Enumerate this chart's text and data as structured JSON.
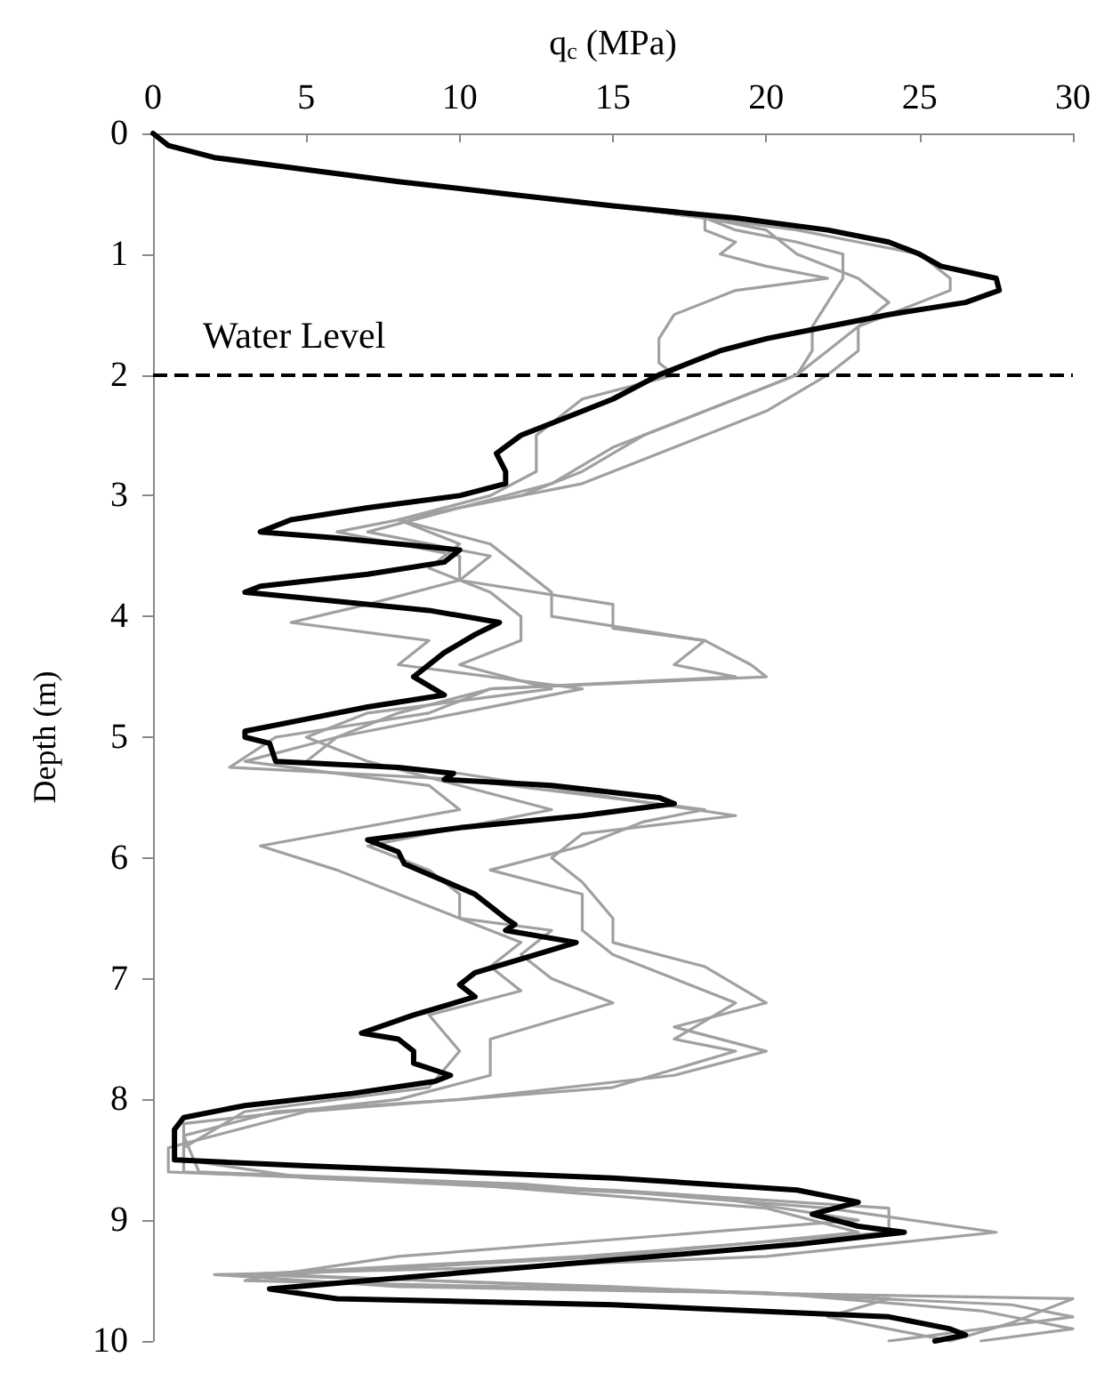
{
  "chart_data": {
    "type": "line",
    "xlabel": "q$_{c}$ (MPa)",
    "ylabel": "Depth (m)",
    "xlim": [
      0,
      30
    ],
    "xticks": [
      0,
      5,
      10,
      15,
      20,
      25,
      30
    ],
    "ylim": [
      10,
      0
    ],
    "yticks": [
      0,
      1,
      2,
      3,
      4,
      5,
      6,
      7,
      8,
      9,
      10
    ],
    "grid": false,
    "marker": "none",
    "line_style": "solid",
    "ref_lines": [
      {
        "axis": "y",
        "value": 2,
        "label": "Water Level",
        "color": "#000000",
        "line_style": "dashed"
      }
    ],
    "series": [
      {
        "color": "#a0a0a0",
        "x": [
          0,
          0.5,
          2,
          5,
          8,
          11.5,
          15,
          18,
          21,
          23,
          25,
          26,
          26,
          25,
          23,
          23,
          22,
          20,
          17,
          14,
          10,
          7,
          11,
          10,
          15,
          15,
          18,
          19.5,
          20,
          11,
          8,
          6,
          5,
          10,
          15,
          19,
          14,
          13,
          14,
          15,
          15,
          18,
          20,
          17,
          20,
          17,
          10,
          4,
          1,
          1.5,
          12,
          22,
          27.5,
          20,
          10,
          2,
          8,
          30,
          28,
          26
        ],
        "values": [
          0,
          0.1,
          0.2,
          0.3,
          0.4,
          0.5,
          0.6,
          0.7,
          0.8,
          0.9,
          1.0,
          1.2,
          1.3,
          1.4,
          1.6,
          1.8,
          2.0,
          2.3,
          2.6,
          2.9,
          3.1,
          3.3,
          3.5,
          3.7,
          3.9,
          4.1,
          4.2,
          4.4,
          4.5,
          4.6,
          4.8,
          5.0,
          5.2,
          5.3,
          5.5,
          5.65,
          5.8,
          6.0,
          6.2,
          6.5,
          6.7,
          6.9,
          7.2,
          7.4,
          7.6,
          7.8,
          8.0,
          8.1,
          8.3,
          8.6,
          8.7,
          8.9,
          9.1,
          9.3,
          9.4,
          9.45,
          9.55,
          9.65,
          9.85,
          10
        ]
      },
      {
        "color": "#a0a0a0",
        "x": [
          0,
          0.5,
          2,
          5,
          8,
          11.5,
          15,
          18,
          19,
          21,
          22.5,
          22.5,
          22.5,
          22,
          21.5,
          21.5,
          21,
          19,
          16,
          14,
          12,
          8,
          11,
          12,
          13,
          13,
          18,
          17,
          19,
          11,
          9,
          4,
          2.5,
          10,
          18,
          16,
          14,
          11,
          14,
          14,
          15,
          17,
          19,
          17,
          19,
          15,
          5,
          0.5,
          0.5,
          15,
          24,
          24,
          14,
          3,
          15,
          28,
          30,
          24
        ],
        "values": [
          0,
          0.1,
          0.2,
          0.3,
          0.4,
          0.5,
          0.6,
          0.7,
          0.8,
          0.9,
          1.0,
          1.1,
          1.2,
          1.4,
          1.6,
          1.8,
          2.0,
          2.2,
          2.5,
          2.8,
          3.0,
          3.2,
          3.4,
          3.6,
          3.8,
          4.0,
          4.2,
          4.4,
          4.5,
          4.6,
          4.8,
          5.0,
          5.25,
          5.35,
          5.6,
          5.7,
          5.9,
          6.1,
          6.3,
          6.6,
          6.8,
          7.0,
          7.2,
          7.5,
          7.6,
          7.9,
          8.1,
          8.4,
          8.6,
          8.75,
          8.9,
          9.1,
          9.3,
          9.45,
          9.55,
          9.7,
          9.8,
          10
        ]
      },
      {
        "color": "#a0a0a0",
        "x": [
          0,
          0.5,
          2,
          5,
          8,
          11.5,
          15,
          18,
          18,
          19,
          18.5,
          20,
          22,
          19,
          17,
          16.5,
          16.5,
          17,
          14,
          12.5,
          12.5,
          11,
          8,
          10,
          9,
          11,
          12,
          12,
          10,
          13,
          7,
          5,
          7,
          10,
          13,
          7,
          9,
          10,
          10,
          13,
          12,
          13,
          15,
          11,
          11,
          8,
          1,
          1,
          5,
          18,
          23,
          8,
          4,
          14,
          24,
          22,
          26
        ],
        "values": [
          0,
          0.1,
          0.2,
          0.3,
          0.4,
          0.5,
          0.6,
          0.7,
          0.8,
          0.9,
          1.0,
          1.1,
          1.2,
          1.3,
          1.5,
          1.7,
          1.9,
          2.0,
          2.2,
          2.5,
          2.8,
          3.0,
          3.2,
          3.4,
          3.6,
          3.8,
          4.0,
          4.2,
          4.4,
          4.6,
          4.8,
          5.0,
          5.2,
          5.4,
          5.6,
          5.9,
          6.1,
          6.3,
          6.5,
          6.6,
          6.8,
          7.0,
          7.2,
          7.5,
          7.8,
          8.0,
          8.2,
          8.5,
          8.65,
          8.8,
          9.0,
          9.3,
          9.45,
          9.55,
          9.65,
          9.8,
          10
        ]
      },
      {
        "color": "#a0a0a0",
        "x": [
          0,
          0.5,
          2,
          5,
          8,
          11.5,
          15,
          18,
          20,
          21,
          23,
          24,
          23,
          22,
          21,
          18,
          15,
          13,
          10,
          6,
          10,
          10,
          7,
          4.5,
          9,
          8,
          14,
          10,
          6,
          3,
          9,
          10,
          3.5,
          6,
          8,
          10,
          12,
          11,
          12,
          9,
          10,
          9,
          3,
          1,
          1,
          10,
          20,
          23,
          15,
          4,
          3,
          20,
          27,
          30,
          27
        ],
        "values": [
          0,
          0.1,
          0.2,
          0.3,
          0.4,
          0.5,
          0.6,
          0.7,
          0.8,
          1.0,
          1.2,
          1.4,
          1.6,
          1.8,
          2.0,
          2.3,
          2.6,
          2.9,
          3.1,
          3.3,
          3.5,
          3.7,
          3.9,
          4.05,
          4.2,
          4.4,
          4.6,
          4.8,
          5.0,
          5.2,
          5.4,
          5.6,
          5.9,
          6.1,
          6.3,
          6.5,
          6.7,
          6.9,
          7.1,
          7.3,
          7.6,
          7.9,
          8.1,
          8.4,
          8.6,
          8.7,
          8.9,
          9.1,
          9.3,
          9.45,
          9.5,
          9.6,
          9.75,
          9.9,
          10
        ]
      },
      {
        "color": "#000000",
        "x": [
          0,
          0.5,
          2,
          5,
          8,
          11.5,
          15,
          19,
          22,
          24,
          25,
          25.7,
          27.5,
          27.6,
          26.5,
          24,
          22,
          20,
          18.5,
          17.5,
          16.5,
          15,
          13,
          12,
          11.2,
          11.5,
          11.5,
          10,
          7,
          4.5,
          3.5,
          6,
          10,
          9.5,
          7,
          3.5,
          3,
          5,
          9,
          11.3,
          10.5,
          9.5,
          8.5,
          9.5,
          7,
          5,
          3,
          3,
          3.8,
          4,
          8,
          9.8,
          9.5,
          13,
          16.5,
          17,
          14,
          10,
          7,
          8,
          8.2,
          10.5,
          11.5,
          11.8,
          11.5,
          13.8,
          12.5,
          10.5,
          10,
          10.5,
          8.5,
          6.8,
          8,
          8.5,
          8.5,
          9.7,
          9.2,
          6.5,
          3,
          1,
          0.7,
          0.7,
          5,
          15,
          21,
          23,
          21.5,
          23,
          24.5,
          21,
          14,
          7,
          3.8,
          6,
          15,
          24,
          26,
          26.5,
          25.5
        ],
        "values": [
          0,
          0.1,
          0.2,
          0.3,
          0.4,
          0.5,
          0.6,
          0.7,
          0.8,
          0.9,
          1.0,
          1.1,
          1.2,
          1.3,
          1.4,
          1.5,
          1.6,
          1.7,
          1.8,
          1.9,
          2.0,
          2.2,
          2.4,
          2.5,
          2.65,
          2.8,
          2.9,
          3.0,
          3.1,
          3.2,
          3.3,
          3.35,
          3.45,
          3.55,
          3.65,
          3.75,
          3.8,
          3.85,
          3.95,
          4.05,
          4.15,
          4.3,
          4.5,
          4.65,
          4.75,
          4.85,
          4.95,
          5.0,
          5.05,
          5.2,
          5.25,
          5.3,
          5.35,
          5.4,
          5.5,
          5.55,
          5.65,
          5.75,
          5.85,
          5.95,
          6.05,
          6.3,
          6.5,
          6.55,
          6.6,
          6.7,
          6.8,
          6.95,
          7.05,
          7.15,
          7.3,
          7.45,
          7.5,
          7.6,
          7.7,
          7.8,
          7.85,
          7.95,
          8.05,
          8.15,
          8.25,
          8.5,
          8.55,
          8.65,
          8.75,
          8.85,
          8.95,
          9.05,
          9.1,
          9.2,
          9.35,
          9.5,
          9.57,
          9.65,
          9.7,
          9.8,
          9.9,
          9.95,
          10
        ]
      }
    ]
  }
}
